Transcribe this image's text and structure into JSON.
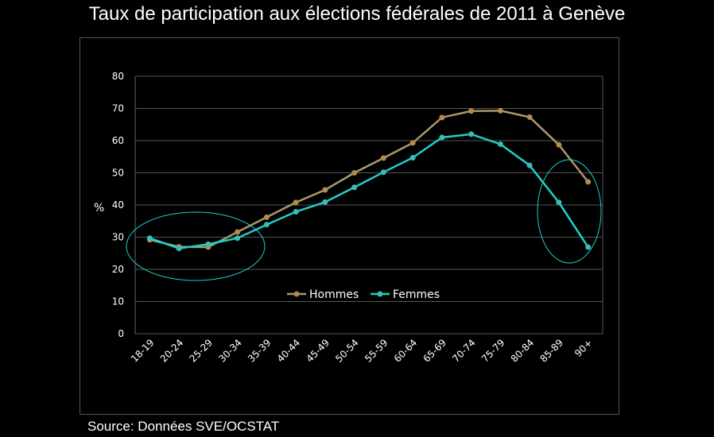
{
  "chart_data": {
    "type": "line",
    "title": "Taux de participation aux élections fédérales de 2011 à Genève",
    "xlabel": "",
    "ylabel": "%",
    "ylim": [
      0,
      80
    ],
    "yticks": [
      0,
      10,
      20,
      30,
      40,
      50,
      60,
      70,
      80
    ],
    "grid": true,
    "legend_placement": "center",
    "categories": [
      "18-19",
      "20-24",
      "25-29",
      "30-34",
      "35-39",
      "40-44",
      "45-49",
      "50-54",
      "55-59",
      "60-64",
      "65-69",
      "70-74",
      "75-79",
      "80-84",
      "85-89",
      "90+"
    ],
    "series": [
      {
        "name": "Hommes",
        "color": "#a89a6a",
        "marker_color": "#b58a4a",
        "values": [
          29.2,
          27.0,
          26.9,
          31.6,
          36.2,
          40.8,
          44.7,
          50.0,
          54.6,
          59.3,
          67.2,
          69.2,
          69.3,
          67.3,
          58.7,
          47.2
        ]
      },
      {
        "name": "Femmes",
        "color": "#1fd0c8",
        "marker_color": "#3bbdb5",
        "values": [
          29.7,
          26.5,
          27.8,
          29.7,
          33.9,
          37.9,
          40.9,
          45.5,
          50.2,
          54.7,
          61.0,
          62.0,
          58.9,
          52.3,
          40.8,
          26.9
        ]
      }
    ],
    "annotations": [
      "ellipse around 18-19 to 30-34",
      "ellipse around 85-89 to 90+"
    ]
  },
  "source": "Source: Données SVE/OCSTAT"
}
